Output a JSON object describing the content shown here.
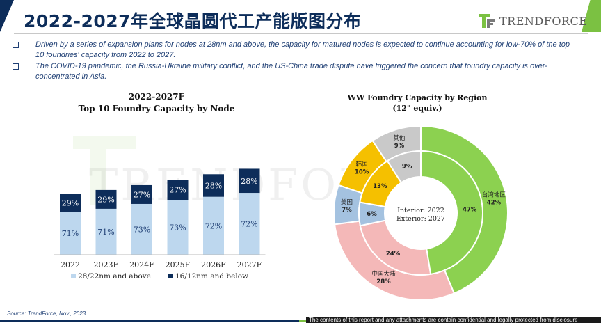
{
  "page": {
    "title": "2022-2027年全球晶圆代工产能版图分布",
    "logo_text": "TRENDFORCE",
    "bullets": [
      "Driven by a series of expansion plans for nodes at 28nm and above, the capacity for matured nodes is expected to continue accounting for low-70% of the top 10 foundries' capacity from 2022 to 2027.",
      "The COVID-19 pandemic, the Russia-Ukraine military conflict, and the US-China trade dispute have triggered the concern that foundry capacity is over-concentrated in Asia."
    ],
    "source": "Source: TrendForce, Nov., 2023",
    "footer_note": "The contents of this report and any attachments are contain confidential and legally protected from disclosure",
    "watermark": "TRENDFORCE"
  },
  "colors": {
    "navy": "#0d2d5a",
    "green": "#7bc142",
    "bar_light": "#bdd7ee",
    "bar_dark": "#0d2d5a"
  },
  "chart_data": [
    {
      "type": "bar",
      "stacked": true,
      "title_line1": "2022-2027F",
      "title_line2": "Top 10 Foundry Capacity by Node",
      "categories": [
        "2022",
        "2023E",
        "2024F",
        "2025F",
        "2026F",
        "2027F"
      ],
      "series": [
        {
          "name": "28/22nm and above",
          "values": [
            71,
            71,
            73,
            73,
            72,
            72
          ],
          "labels": [
            "71%",
            "71%",
            "73%",
            "73%",
            "72%",
            "72%"
          ],
          "color": "#bdd7ee"
        },
        {
          "name": "16/12nm and below",
          "values": [
            29,
            29,
            27,
            27,
            28,
            28
          ],
          "labels": [
            "29%",
            "29%",
            "27%",
            "27%",
            "28%",
            "28%"
          ],
          "color": "#0d2d5a"
        }
      ],
      "relative_totals": [
        100,
        107,
        115,
        124,
        133,
        142
      ],
      "legend_position": "bottom"
    },
    {
      "type": "pie",
      "donut": true,
      "title_line1": "WW Foundry Capacity by Region",
      "title_line2": "(12\" equiv.)",
      "center_label_1": "Interior: 2022",
      "center_label_2": "Exterior: 2027",
      "interior": {
        "year": "2022",
        "slices": [
          {
            "name": "台湾地区",
            "value": 47,
            "label": "47%",
            "color": "#8cd150"
          },
          {
            "name": "中国大陆",
            "value": 24,
            "label": "24%",
            "color": "#f4b8b8"
          },
          {
            "name": "美国",
            "value": 6,
            "label": "6%",
            "color": "#a4c2e0"
          },
          {
            "name": "韩国",
            "value": 13,
            "label": "13%",
            "color": "#f5c000"
          },
          {
            "name": "其他",
            "value": 9,
            "label": "9%",
            "color": "#c9c9c9"
          }
        ]
      },
      "exterior": {
        "year": "2027",
        "slices": [
          {
            "name": "台湾地区",
            "value": 42,
            "label": "台湾地区\n42%",
            "color": "#8cd150"
          },
          {
            "name": "中国大陆",
            "value": 28,
            "label": "中国大陆\n28%",
            "color": "#f4b8b8"
          },
          {
            "name": "美国",
            "value": 7,
            "label": "美国\n7%",
            "color": "#a4c2e0"
          },
          {
            "name": "韩国",
            "value": 10,
            "label": "韩国\n10%",
            "color": "#f5c000"
          },
          {
            "name": "其他",
            "value": 9,
            "label": "其他\n9%",
            "color": "#c9c9c9"
          }
        ]
      }
    }
  ]
}
